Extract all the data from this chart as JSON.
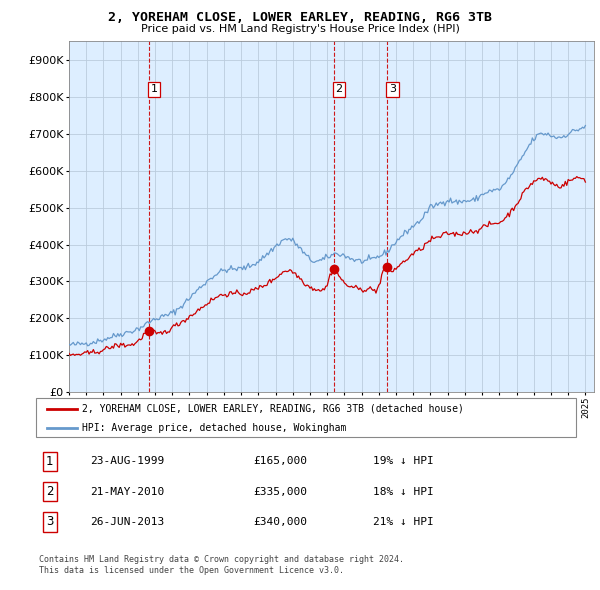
{
  "title": "2, YOREHAM CLOSE, LOWER EARLEY, READING, RG6 3TB",
  "subtitle": "Price paid vs. HM Land Registry's House Price Index (HPI)",
  "legend_line1": "2, YOREHAM CLOSE, LOWER EARLEY, READING, RG6 3TB (detached house)",
  "legend_line2": "HPI: Average price, detached house, Wokingham",
  "transactions": [
    {
      "num": 1,
      "date": "23-AUG-1999",
      "price": 165000,
      "hpi_diff": "19% ↓ HPI",
      "x_year": 1999.64
    },
    {
      "num": 2,
      "date": "21-MAY-2010",
      "price": 335000,
      "hpi_diff": "18% ↓ HPI",
      "x_year": 2010.38
    },
    {
      "num": 3,
      "date": "26-JUN-2013",
      "price": 340000,
      "hpi_diff": "21% ↓ HPI",
      "x_year": 2013.48
    }
  ],
  "footnote1": "Contains HM Land Registry data © Crown copyright and database right 2024.",
  "footnote2": "This data is licensed under the Open Government Licence v3.0.",
  "hpi_color": "#6699cc",
  "price_color": "#cc0000",
  "vline_color": "#cc0000",
  "bg_color": "#ddeeff",
  "ylim": [
    0,
    950000
  ],
  "yticks": [
    0,
    100000,
    200000,
    300000,
    400000,
    500000,
    600000,
    700000,
    800000,
    900000
  ],
  "xlim_start": 1995.0,
  "xlim_end": 2025.5
}
